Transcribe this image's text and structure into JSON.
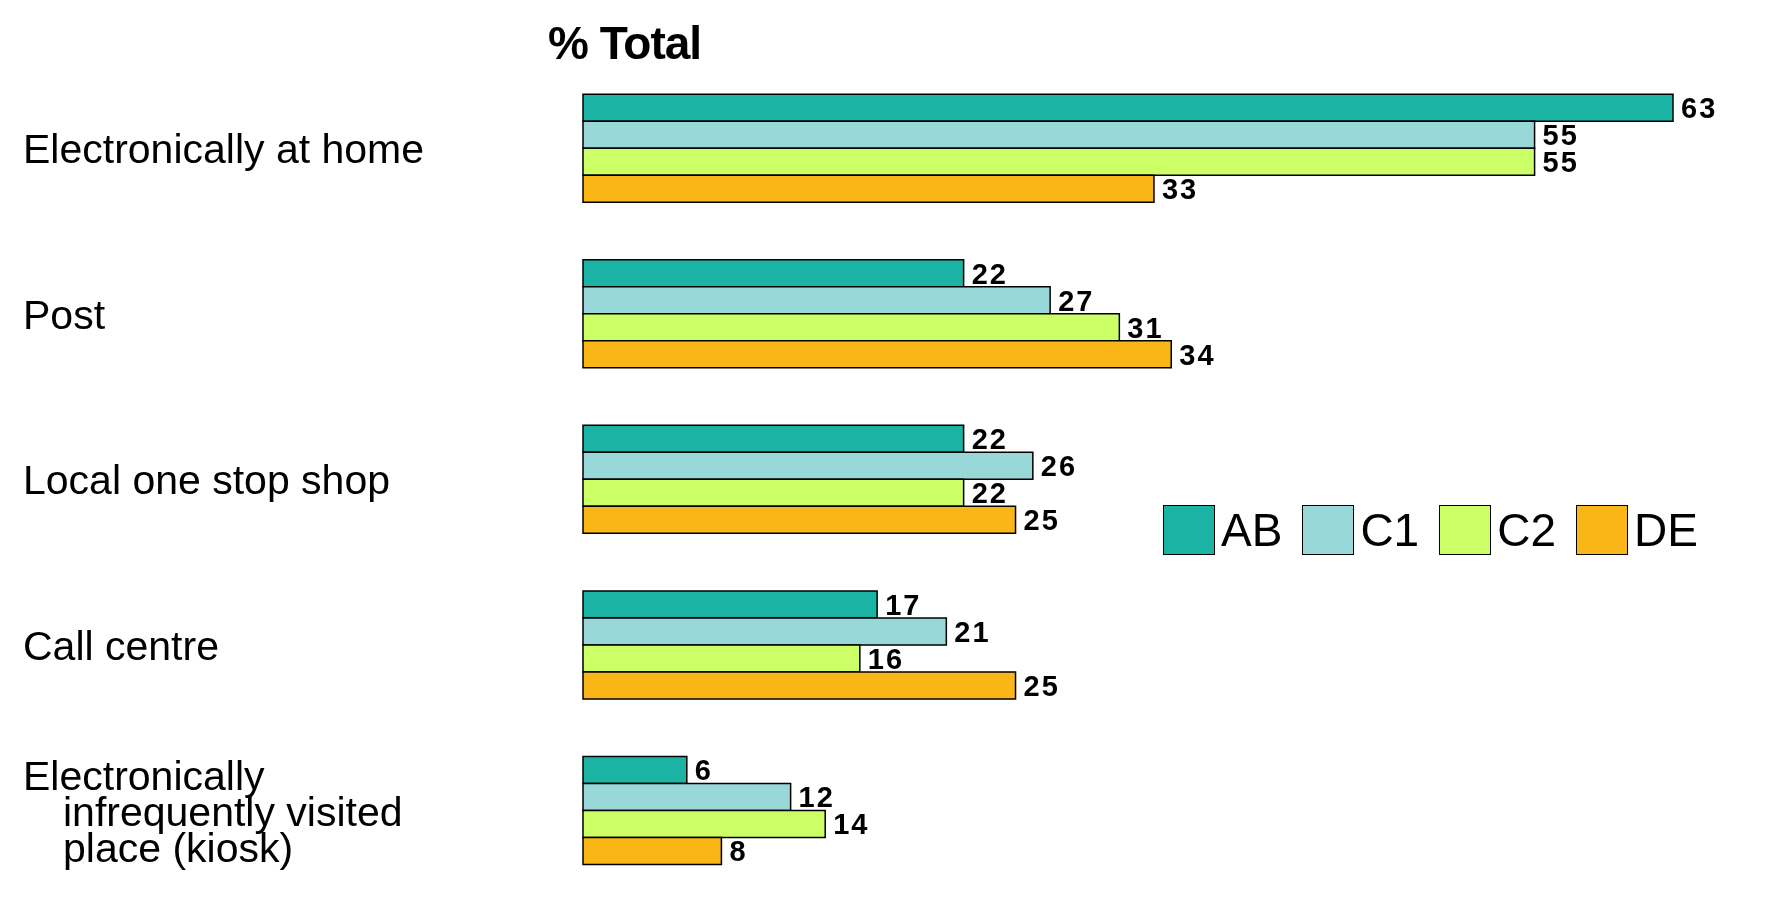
{
  "chart_data": {
    "type": "bar",
    "orientation": "horizontal",
    "title": "% Total",
    "categories": [
      "Electronically at home",
      "Post",
      "Local one stop shop",
      "Call centre",
      "Electronically\n  infrequently visited\n  place (kiosk)"
    ],
    "series": [
      {
        "name": "AB",
        "color": "#1bb3a4",
        "values": [
          63,
          22,
          22,
          17,
          6
        ]
      },
      {
        "name": "C1",
        "color": "#99d8d8",
        "values": [
          55,
          27,
          26,
          21,
          12
        ]
      },
      {
        "name": "C2",
        "color": "#ccff66",
        "values": [
          55,
          31,
          22,
          16,
          14
        ]
      },
      {
        "name": "DE",
        "color": "#f9b616",
        "values": [
          33,
          34,
          25,
          25,
          8
        ]
      }
    ],
    "data_labels": true,
    "legend": "right"
  }
}
